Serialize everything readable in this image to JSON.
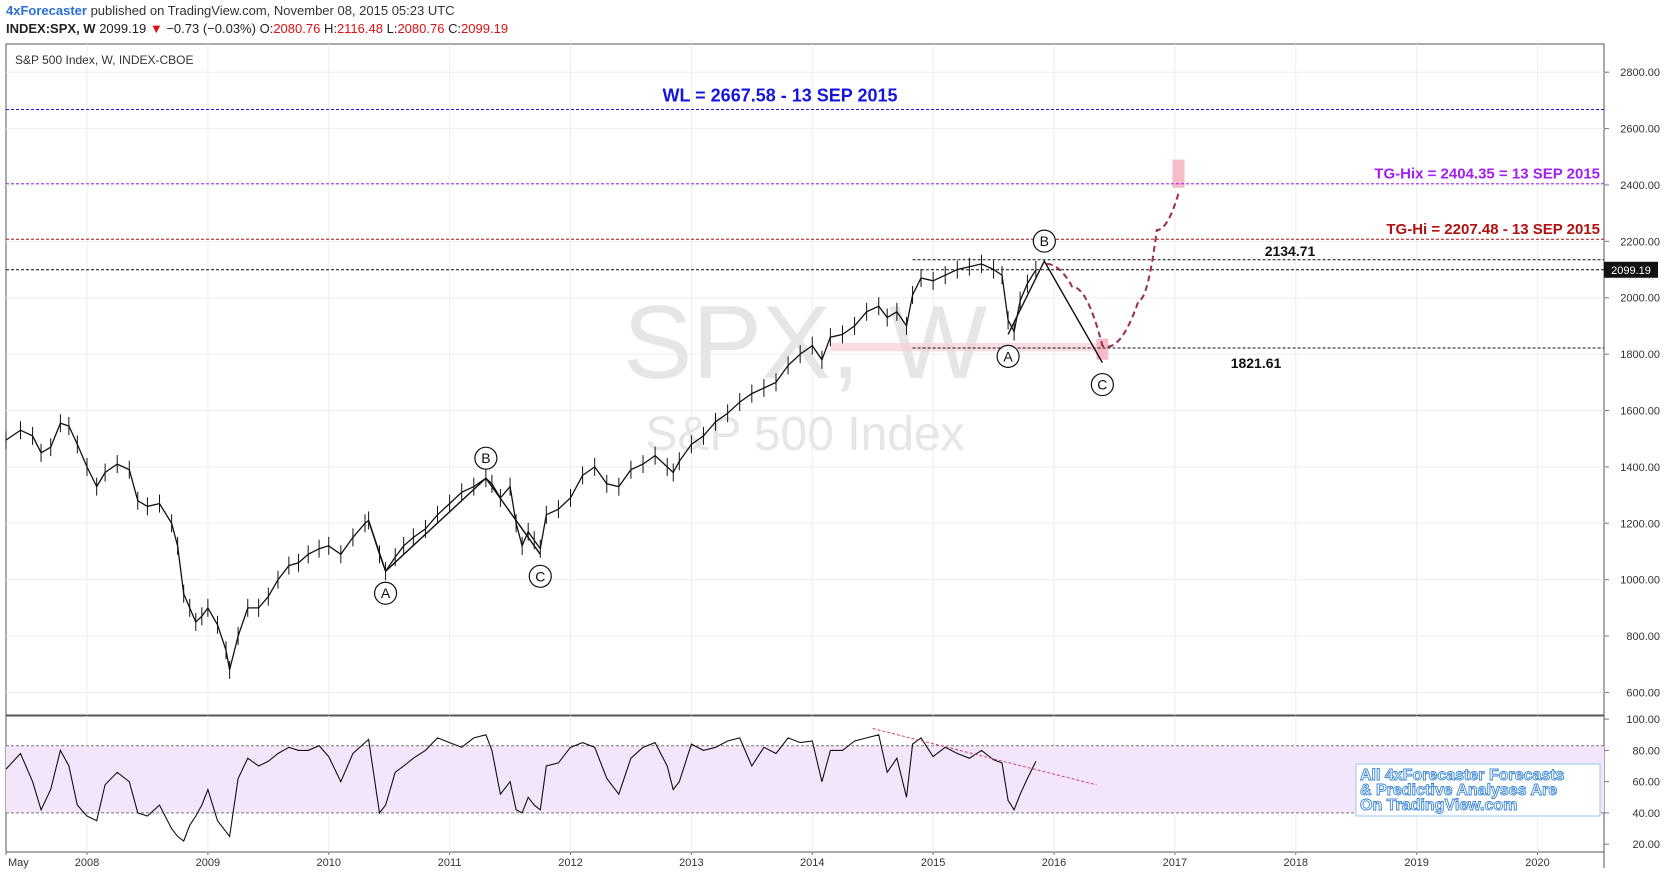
{
  "header": {
    "author": "4xForecaster",
    "published": "published on TradingView.com, November 08, 2015 05:23 UTC",
    "symbol": "INDEX:SPX, W",
    "last": "2099.19",
    "change": "−0.73 (−0.03%)",
    "o_label": "O:",
    "o_value": "2080.76",
    "h_label": "H:",
    "h_value": "2116.48",
    "l_label": "L:",
    "l_value": "2080.76",
    "c_label": "C:",
    "c_value": "2099.19"
  },
  "chart_data": {
    "type": "line",
    "title": "S&P 500 Index, W, INDEX-CBOE",
    "watermark_symbol": "SPX, W",
    "watermark_name": "S&P 500 Index",
    "colors": {
      "wl": "#1515e0",
      "tg_hix": "#a020f0",
      "tg_hi": "#b01010",
      "rsi_band": "#f3e6fb",
      "projection": "#9b2d4d",
      "price": "#111111"
    },
    "price_axis": {
      "ylim": [
        520,
        2900
      ],
      "ticks": [
        "600.00",
        "800.00",
        "1000.00",
        "1200.00",
        "1400.00",
        "1600.00",
        "1800.00",
        "2000.00",
        "2200.00",
        "2400.00",
        "2600.00",
        "2800.00"
      ]
    },
    "rsi_axis": {
      "ylim": [
        15,
        102
      ],
      "ticks": [
        "20.00",
        "40.00",
        "60.00",
        "80.00",
        "100.00"
      ],
      "band": [
        40,
        83
      ]
    },
    "time_axis": {
      "labels": [
        "May",
        "2008",
        "2009",
        "2010",
        "2011",
        "2012",
        "2013",
        "2014",
        "2015",
        "2016",
        "2017",
        "2018",
        "2019",
        "2020"
      ],
      "years": [
        2007.33,
        2008,
        2009,
        2010,
        2011,
        2012,
        2013,
        2014,
        2015,
        2016,
        2017,
        2018,
        2019,
        2020
      ]
    },
    "price_series": {
      "name": "SPX weekly close",
      "x": [
        2007.33,
        2007.45,
        2007.55,
        2007.62,
        2007.7,
        2007.78,
        2007.85,
        2007.92,
        2008.0,
        2008.08,
        2008.15,
        2008.25,
        2008.35,
        2008.42,
        2008.5,
        2008.6,
        2008.7,
        2008.75,
        2008.8,
        2008.85,
        2008.9,
        2008.95,
        2009.0,
        2009.08,
        2009.15,
        2009.18,
        2009.25,
        2009.33,
        2009.42,
        2009.5,
        2009.58,
        2009.67,
        2009.75,
        2009.83,
        2009.92,
        2010.0,
        2010.1,
        2010.2,
        2010.3,
        2010.33,
        2010.42,
        2010.47,
        2010.55,
        2010.62,
        2010.7,
        2010.8,
        2010.9,
        2011.0,
        2011.1,
        2011.2,
        2011.3,
        2011.35,
        2011.42,
        2011.5,
        2011.55,
        2011.6,
        2011.65,
        2011.7,
        2011.75,
        2011.8,
        2011.9,
        2012.0,
        2012.1,
        2012.2,
        2012.3,
        2012.4,
        2012.5,
        2012.6,
        2012.7,
        2012.8,
        2012.85,
        2012.9,
        2013.0,
        2013.1,
        2013.2,
        2013.3,
        2013.4,
        2013.5,
        2013.6,
        2013.7,
        2013.8,
        2013.9,
        2014.0,
        2014.08,
        2014.15,
        2014.25,
        2014.35,
        2014.45,
        2014.55,
        2014.62,
        2014.7,
        2014.78,
        2014.83,
        2014.9,
        2015.0,
        2015.1,
        2015.2,
        2015.3,
        2015.4,
        2015.5,
        2015.57,
        2015.62,
        2015.67,
        2015.72,
        2015.78,
        2015.85
      ],
      "values": [
        1495,
        1530,
        1510,
        1450,
        1470,
        1555,
        1545,
        1480,
        1400,
        1330,
        1380,
        1410,
        1390,
        1280,
        1260,
        1270,
        1200,
        1120,
        950,
        900,
        850,
        870,
        900,
        840,
        750,
        680,
        800,
        900,
        900,
        940,
        1000,
        1050,
        1060,
        1090,
        1110,
        1120,
        1090,
        1150,
        1200,
        1210,
        1090,
        1030,
        1080,
        1120,
        1150,
        1180,
        1230,
        1270,
        1310,
        1330,
        1360,
        1340,
        1290,
        1330,
        1200,
        1120,
        1170,
        1140,
        1110,
        1230,
        1250,
        1290,
        1370,
        1400,
        1340,
        1330,
        1390,
        1410,
        1440,
        1400,
        1380,
        1420,
        1480,
        1510,
        1560,
        1590,
        1630,
        1660,
        1680,
        1700,
        1760,
        1800,
        1830,
        1780,
        1860,
        1870,
        1900,
        1950,
        1970,
        1930,
        1950,
        1900,
        2010,
        2070,
        2060,
        2080,
        2100,
        2110,
        2120,
        2100,
        2080,
        1920,
        1880,
        1990,
        2050,
        2099
      ]
    },
    "rsi_series": {
      "name": "RSI",
      "x": [
        2007.33,
        2007.45,
        2007.55,
        2007.62,
        2007.7,
        2007.78,
        2007.85,
        2007.92,
        2008.0,
        2008.08,
        2008.15,
        2008.25,
        2008.35,
        2008.42,
        2008.5,
        2008.6,
        2008.7,
        2008.75,
        2008.8,
        2008.85,
        2008.9,
        2008.95,
        2009.0,
        2009.08,
        2009.15,
        2009.18,
        2009.25,
        2009.33,
        2009.42,
        2009.5,
        2009.58,
        2009.67,
        2009.75,
        2009.83,
        2009.92,
        2010.0,
        2010.1,
        2010.2,
        2010.3,
        2010.33,
        2010.42,
        2010.47,
        2010.55,
        2010.62,
        2010.7,
        2010.8,
        2010.9,
        2011.0,
        2011.1,
        2011.2,
        2011.3,
        2011.35,
        2011.42,
        2011.5,
        2011.55,
        2011.6,
        2011.65,
        2011.7,
        2011.75,
        2011.8,
        2011.9,
        2012.0,
        2012.1,
        2012.2,
        2012.3,
        2012.4,
        2012.5,
        2012.6,
        2012.7,
        2012.8,
        2012.85,
        2012.9,
        2013.0,
        2013.1,
        2013.2,
        2013.3,
        2013.4,
        2013.5,
        2013.6,
        2013.7,
        2013.8,
        2013.9,
        2014.0,
        2014.08,
        2014.15,
        2014.25,
        2014.35,
        2014.45,
        2014.55,
        2014.62,
        2014.7,
        2014.78,
        2014.83,
        2014.9,
        2015.0,
        2015.1,
        2015.2,
        2015.3,
        2015.4,
        2015.5,
        2015.57,
        2015.62,
        2015.67,
        2015.72,
        2015.78,
        2015.85
      ],
      "values": [
        68,
        78,
        60,
        42,
        55,
        80,
        70,
        45,
        38,
        35,
        58,
        66,
        60,
        40,
        38,
        45,
        30,
        25,
        22,
        32,
        38,
        45,
        55,
        35,
        28,
        25,
        62,
        75,
        70,
        73,
        78,
        82,
        80,
        80,
        83,
        76,
        60,
        78,
        85,
        87,
        40,
        45,
        66,
        70,
        75,
        80,
        88,
        85,
        82,
        88,
        90,
        80,
        52,
        60,
        42,
        40,
        50,
        45,
        42,
        70,
        72,
        82,
        85,
        82,
        62,
        52,
        75,
        82,
        85,
        70,
        55,
        60,
        84,
        80,
        82,
        86,
        88,
        70,
        82,
        78,
        88,
        85,
        86,
        60,
        80,
        80,
        86,
        88,
        90,
        66,
        75,
        50,
        84,
        88,
        76,
        82,
        78,
        75,
        80,
        74,
        72,
        48,
        42,
        52,
        62,
        73
      ]
    },
    "rsi_trendline": {
      "x": [
        2014.5,
        2016.35
      ],
      "y": [
        94,
        58
      ]
    },
    "horizontal_levels": [
      {
        "value": 2667.58,
        "color": "#1515e0",
        "label": "WL = 2667.58 - 13 SEP 2015"
      },
      {
        "value": 2404.35,
        "color": "#a020f0",
        "label": "TG-Hix = 2404.35 = 13 SEP 2015"
      },
      {
        "value": 2207.48,
        "color": "#b01010",
        "label": "TG-Hi = 2207.48 - 13 SEP 2015"
      },
      {
        "value": 2134.71,
        "color": "#111111",
        "label": "2134.71"
      },
      {
        "value": 2099.19,
        "color": "#111111",
        "label": "2099.19"
      },
      {
        "value": 1821.61,
        "color": "#111111",
        "label": "1821.61"
      }
    ],
    "elliott_waves": [
      {
        "label": "A",
        "x": 2010.47,
        "y": 1030,
        "pos": "below"
      },
      {
        "label": "B",
        "x": 2011.3,
        "y": 1360,
        "pos": "above"
      },
      {
        "label": "C",
        "x": 2011.75,
        "y": 1090,
        "pos": "below"
      },
      {
        "label": "A",
        "x": 2015.62,
        "y": 1870,
        "pos": "below"
      },
      {
        "label": "B",
        "x": 2015.92,
        "y": 2130,
        "pos": "above"
      },
      {
        "label": "C",
        "x": 2016.4,
        "y": 1770,
        "pos": "below"
      }
    ],
    "wave_paths": [
      {
        "x": [
          2010.33,
          2010.47,
          2011.3,
          2011.75
        ],
        "y": [
          1210,
          1030,
          1360,
          1090
        ]
      },
      {
        "x": [
          2015.62,
          2015.92,
          2016.4
        ],
        "y": [
          1870,
          2130,
          1770
        ]
      }
    ],
    "projection_path": {
      "x": [
        2015.94,
        2016.15,
        2016.4,
        2016.7,
        2016.85,
        2017.03
      ],
      "y": [
        2120,
        2040,
        1830,
        1990,
        2240,
        2370
      ]
    },
    "target_boxes": [
      {
        "x": 2017.03,
        "y_low": 2390,
        "y_high": 2490
      },
      {
        "x": 2016.4,
        "y_low": 1780,
        "y_high": 1855
      }
    ],
    "support_zone": {
      "x": [
        2014.15,
        2016.4
      ],
      "y_low": 1810,
      "y_high": 1840
    },
    "note_lines": [
      "All 4xForecaster Forecasts",
      "& Predictive Analyses Are",
      "On TradingView.com"
    ]
  }
}
